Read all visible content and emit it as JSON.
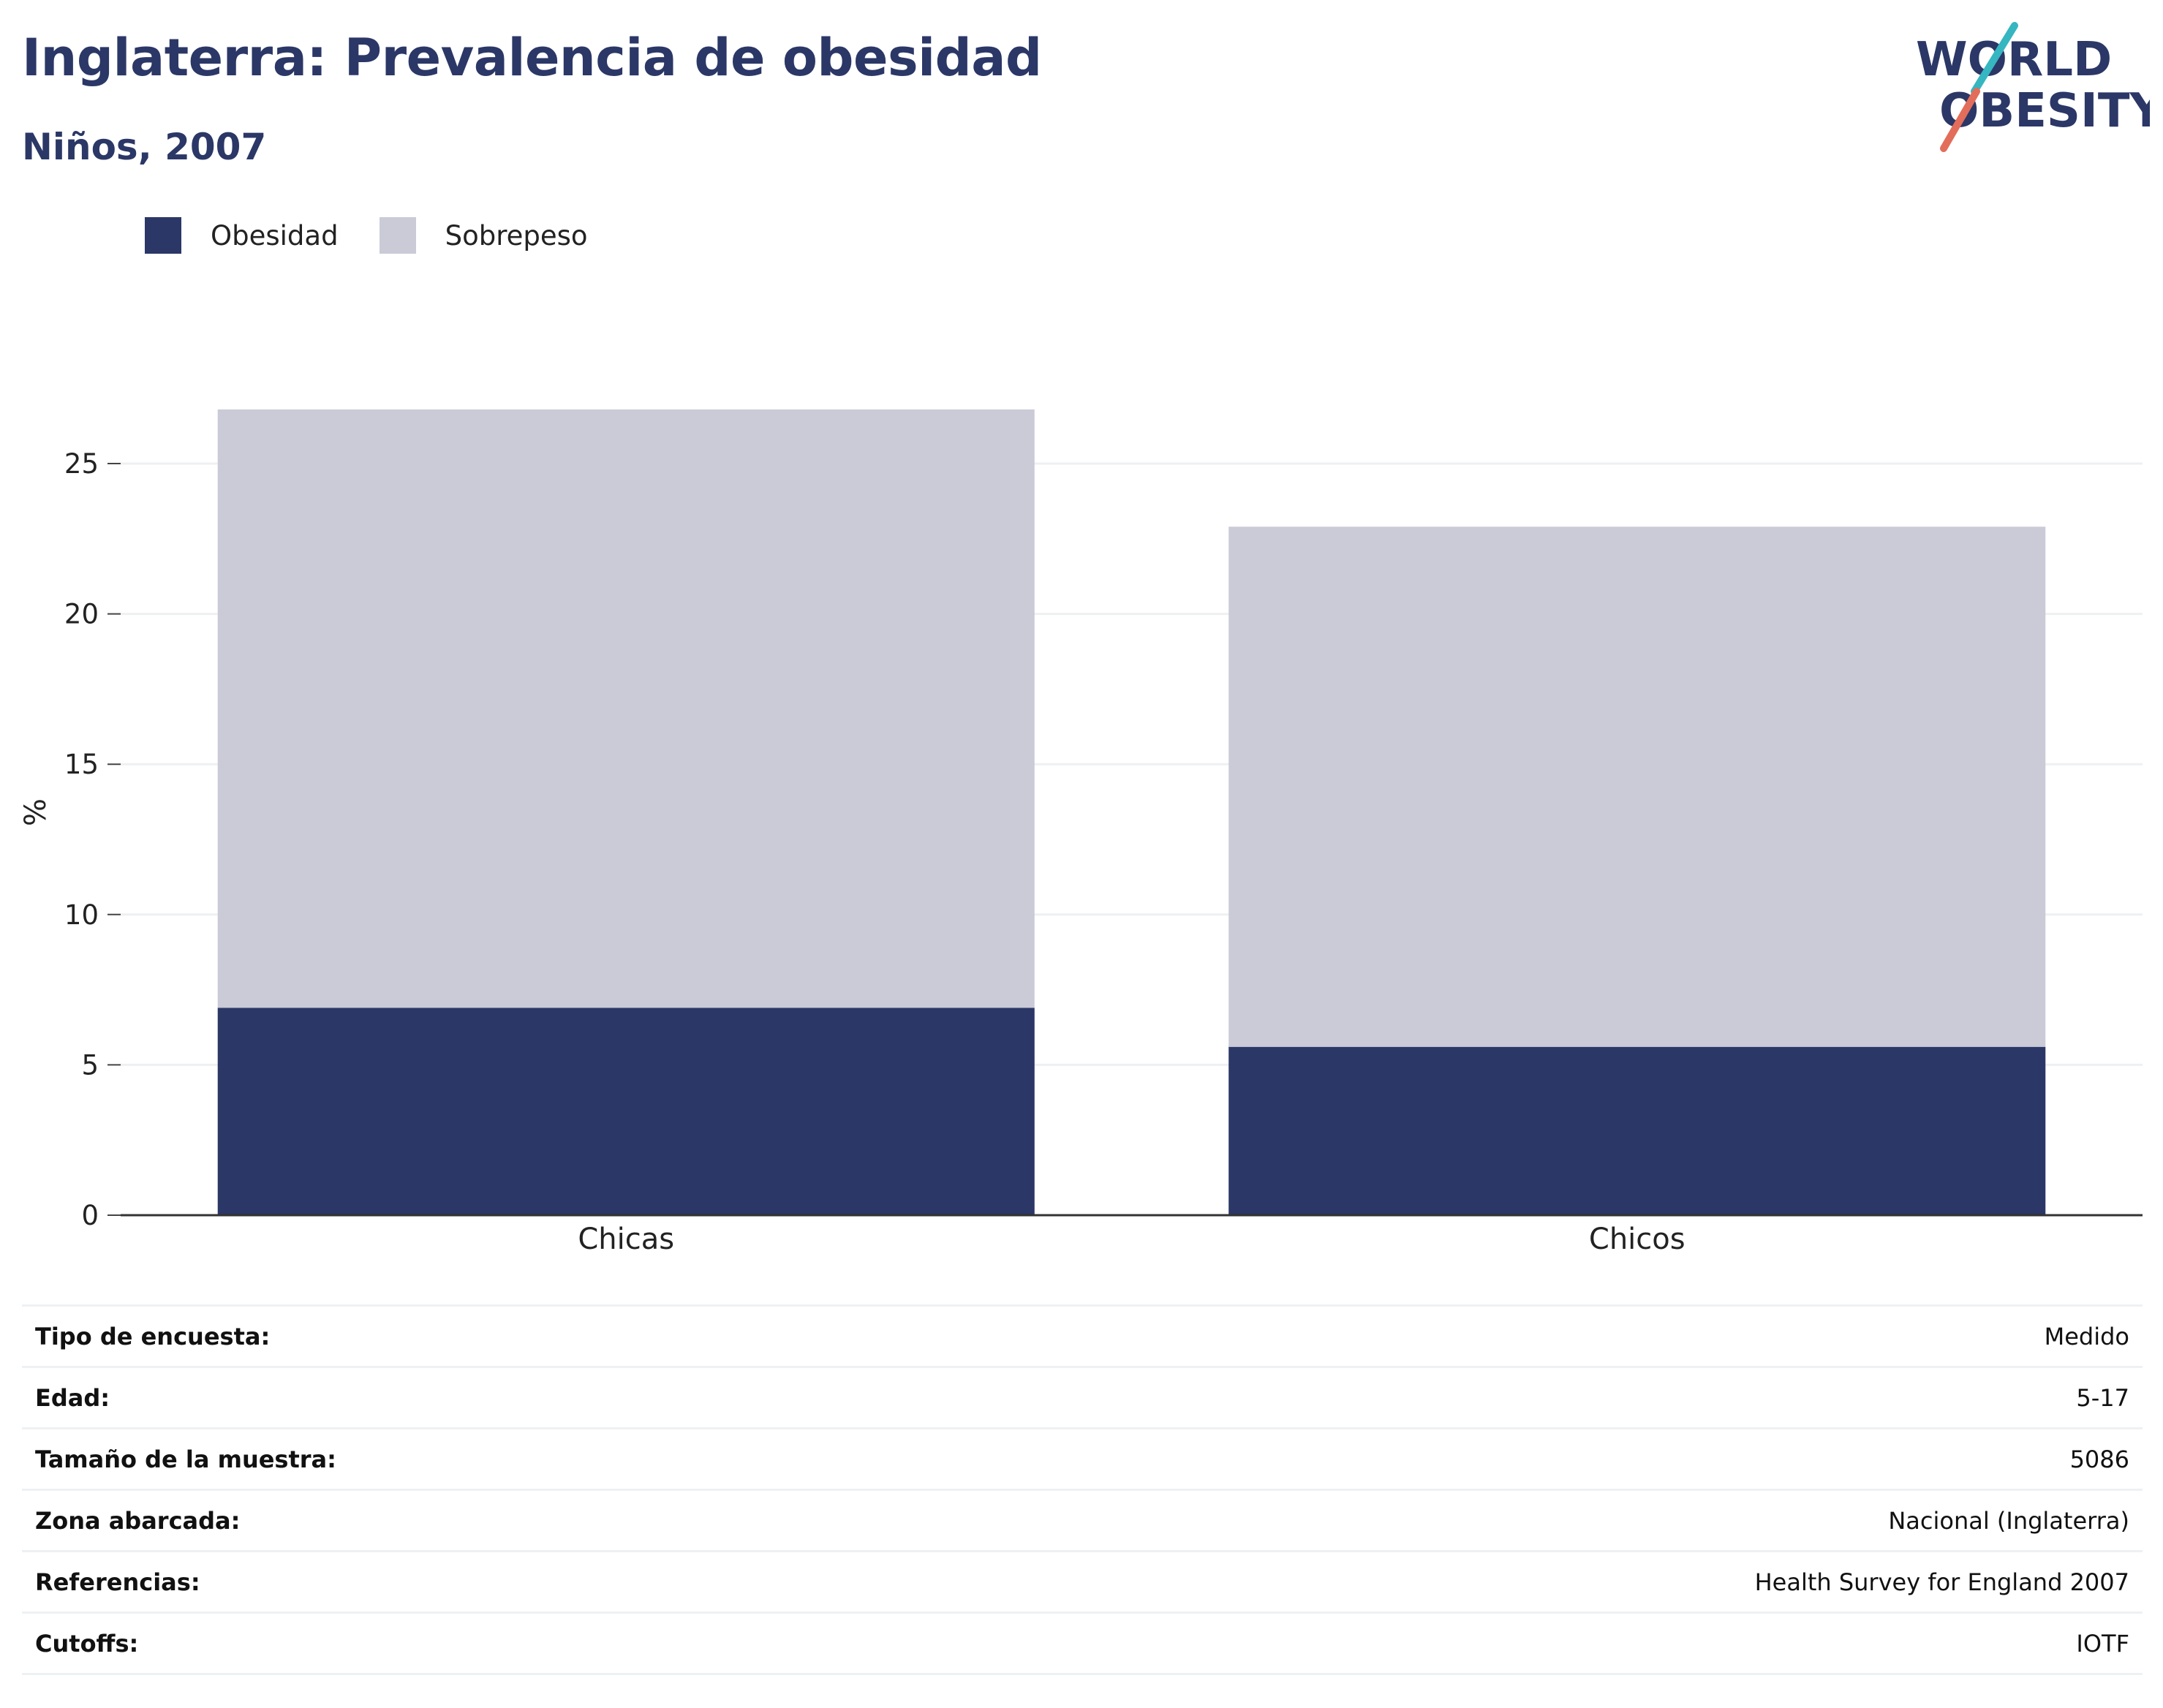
{
  "header": {
    "title": "Inglaterra: Prevalencia de obesidad",
    "subtitle": "Niños, 2007"
  },
  "logo": {
    "line1": "WORLD",
    "line2": "OBESITY"
  },
  "colors": {
    "obesidad": "#2b3766",
    "sobrepeso": "#cacccc",
    "brand_navy": "#2b3766",
    "logo_teal": "#35b6c1",
    "logo_coral": "#e26d5a",
    "gridline": "#eef0f2"
  },
  "legend": [
    {
      "label": "Obesidad",
      "color": "#2b3766"
    },
    {
      "label": "Sobrepeso",
      "color": "#cacbd7"
    }
  ],
  "chart_data": {
    "type": "bar",
    "stacked": true,
    "categories": [
      "Chicas",
      "Chicos"
    ],
    "series": [
      {
        "name": "Obesidad",
        "values": [
          6.9,
          5.6
        ]
      },
      {
        "name": "Sobrepeso",
        "values": [
          19.9,
          17.3
        ]
      }
    ],
    "title": "Inglaterra: Prevalencia de obesidad",
    "subtitle": "Niños, 2007",
    "xlabel": "",
    "ylabel": "%",
    "ylim": [
      0,
      26.8
    ],
    "yticks": [
      0,
      5,
      10,
      15,
      20,
      25
    ],
    "grid": true,
    "legend_position": "top-left"
  },
  "info_table": [
    {
      "key": "Tipo de encuesta:",
      "value": "Medido"
    },
    {
      "key": "Edad:",
      "value": "5-17"
    },
    {
      "key": "Tamaño de la muestra:",
      "value": "5086"
    },
    {
      "key": "Zona abarcada:",
      "value": "Nacional (Inglaterra)"
    },
    {
      "key": "Referencias:",
      "value": "Health Survey for England 2007"
    },
    {
      "key": "Cutoffs:",
      "value": "IOTF"
    }
  ]
}
